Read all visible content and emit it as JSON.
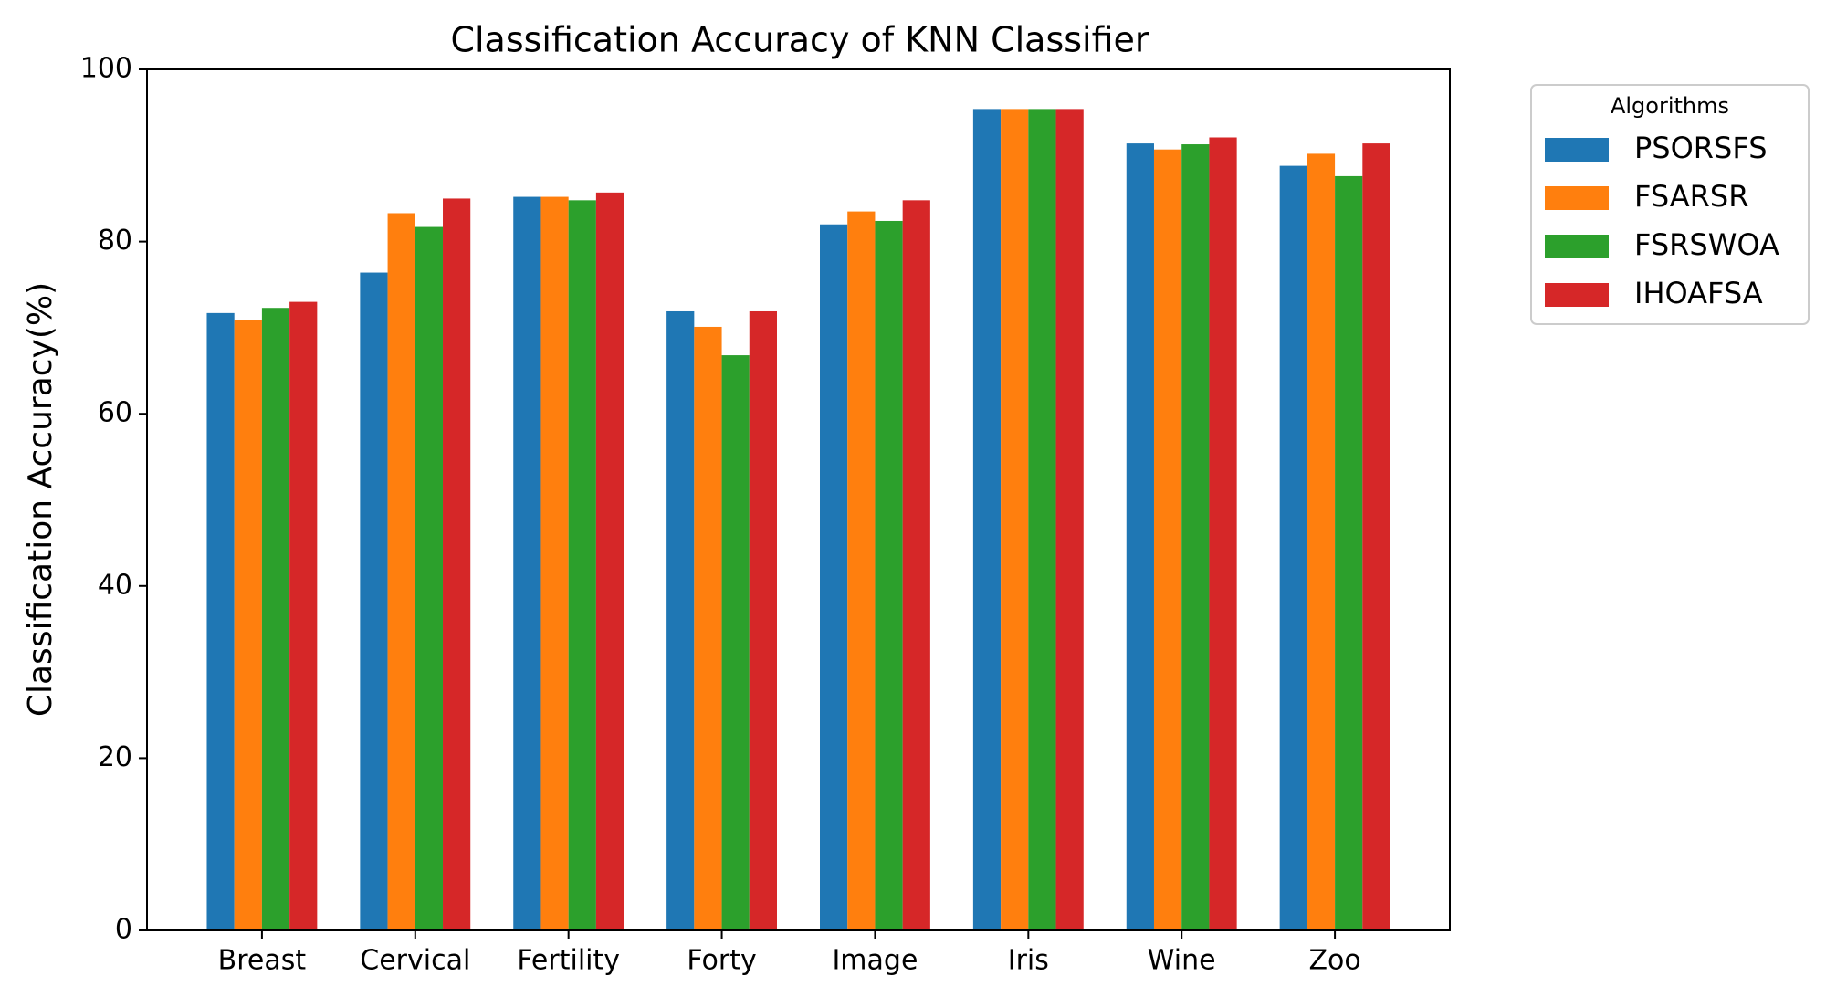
{
  "chart_data": {
    "type": "bar",
    "title": "Classification Accuracy of KNN Classifier",
    "ylabel": "Classification Accuracy(%)",
    "categories": [
      "Breast",
      "Cervical",
      "Fertility",
      "Forty",
      "Image",
      "Iris",
      "Wine",
      "Zoo"
    ],
    "series": [
      {
        "name": "PSORSFS",
        "color": "#1f77b4",
        "values": [
          71.7,
          76.4,
          85.2,
          71.9,
          82.0,
          95.4,
          91.4,
          88.8
        ]
      },
      {
        "name": "FSARSR",
        "color": "#ff7f0e",
        "values": [
          70.9,
          83.3,
          85.2,
          70.1,
          83.5,
          95.4,
          90.7,
          90.2
        ]
      },
      {
        "name": "FSRSWOA",
        "color": "#2ca02c",
        "values": [
          72.3,
          81.7,
          84.8,
          66.8,
          82.4,
          95.4,
          91.3,
          87.6
        ]
      },
      {
        "name": "IHOAFSA",
        "color": "#d62728",
        "values": [
          73.0,
          85.0,
          85.7,
          71.9,
          84.8,
          95.4,
          92.1,
          91.4
        ]
      }
    ],
    "legend_title": "Algorithms",
    "legend": "outside upper right",
    "ylim": [
      0,
      100
    ],
    "yticks": [
      0,
      20,
      40,
      60,
      80,
      100
    ],
    "grid": false
  }
}
